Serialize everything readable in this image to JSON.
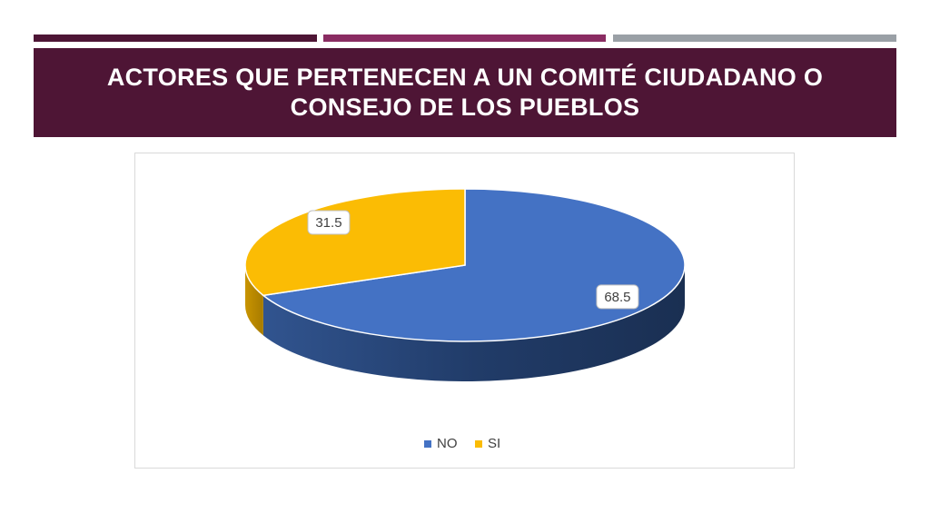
{
  "slide": {
    "title": "ACTORES QUE PERTENECEN A UN COMITÉ CIUDADANO O CONSEJO DE LOS PUEBLOS",
    "colors": {
      "title_bg": "#4e1535",
      "stripe_1": "#4e1535",
      "stripe_2": "#8a2c62",
      "stripe_3": "#9aa0a6"
    }
  },
  "chart_data": {
    "type": "pie",
    "title": "",
    "categories": [
      "NO",
      "SI"
    ],
    "values": [
      68.5,
      31.5
    ],
    "labels": [
      "68.5",
      "31.5"
    ],
    "colors": [
      "#4472c4",
      "#fbbc04"
    ],
    "legend": {
      "position": "bottom",
      "entries": [
        "NO",
        "SI"
      ]
    },
    "style": "3d"
  }
}
